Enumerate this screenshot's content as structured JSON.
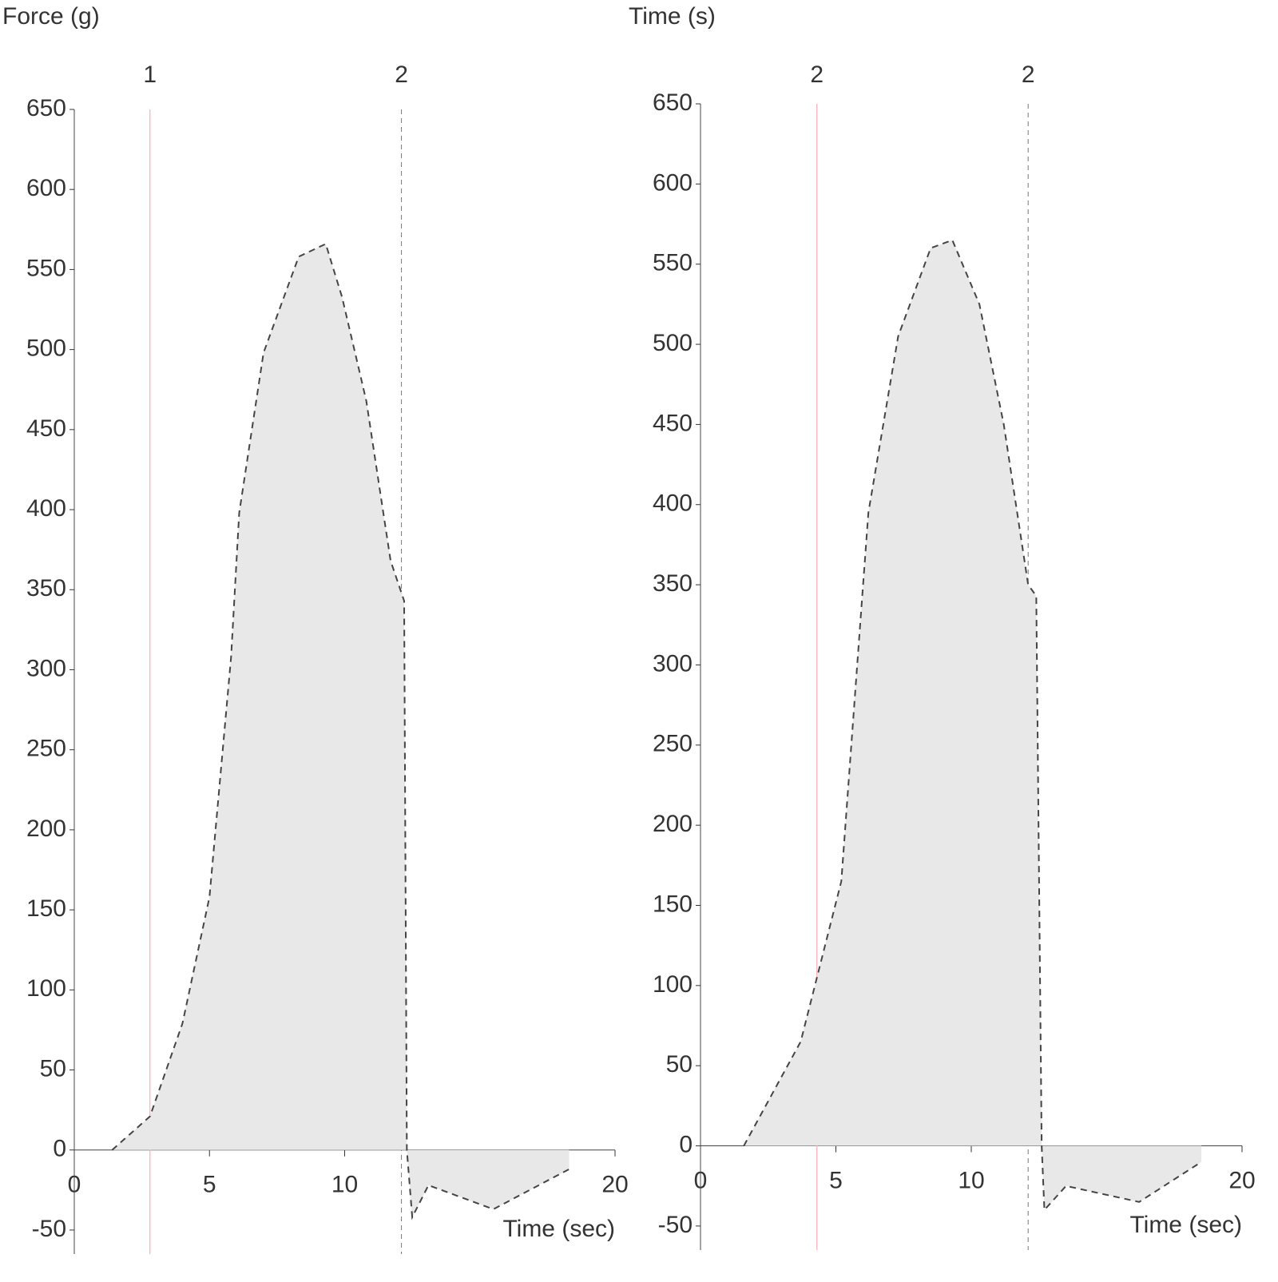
{
  "chart_data": [
    {
      "type": "area",
      "title": "Force (g)",
      "x_label": "Time (sec)",
      "xlim": [
        0,
        20
      ],
      "xticks": [
        0,
        5,
        10,
        15,
        20
      ],
      "ylim": [
        -65,
        650
      ],
      "yticks": [
        -50,
        0,
        50,
        100,
        150,
        200,
        250,
        300,
        350,
        400,
        450,
        500,
        550,
        600,
        650
      ],
      "markers": [
        {
          "value": 2.8,
          "label": "1",
          "color": "#ff9aa8"
        },
        {
          "value": 12.1,
          "label": "2",
          "color": "#777777"
        }
      ],
      "series": [
        {
          "name": "Force",
          "color": "#444444",
          "x": [
            1.4,
            2.8,
            4.0,
            5.0,
            5.8,
            6.1,
            7.0,
            8.3,
            9.3,
            9.9,
            10.8,
            11.7,
            12.2,
            12.3,
            12.5,
            13.1,
            15.5,
            18.3
          ],
          "values": [
            0,
            21,
            79,
            158,
            308,
            398,
            498,
            558,
            566,
            533,
            468,
            368,
            343,
            0,
            -42,
            -22,
            -37,
            -12
          ]
        }
      ]
    },
    {
      "type": "area",
      "title": "Time (s)",
      "x_label": "Time (sec)",
      "xlim": [
        0,
        20
      ],
      "xticks": [
        0,
        5,
        10,
        15,
        20
      ],
      "ylim": [
        -65,
        650
      ],
      "yticks": [
        -50,
        0,
        50,
        100,
        150,
        200,
        250,
        300,
        350,
        400,
        450,
        500,
        550,
        600,
        650
      ],
      "markers": [
        {
          "value": 4.3,
          "label": "2",
          "color": "#ff9aa8"
        },
        {
          "value": 12.1,
          "label": "2",
          "color": "#777777"
        }
      ],
      "series": [
        {
          "name": "Force",
          "color": "#444444",
          "x": [
            1.6,
            3.7,
            5.2,
            6.2,
            7.3,
            8.5,
            9.3,
            10.3,
            11.2,
            12.1,
            12.4,
            12.6,
            12.7,
            13.5,
            16.2,
            18.5
          ],
          "values": [
            0,
            65,
            165,
            395,
            505,
            560,
            565,
            525,
            450,
            350,
            343,
            0,
            -40,
            -25,
            -35,
            -10
          ]
        }
      ]
    }
  ]
}
